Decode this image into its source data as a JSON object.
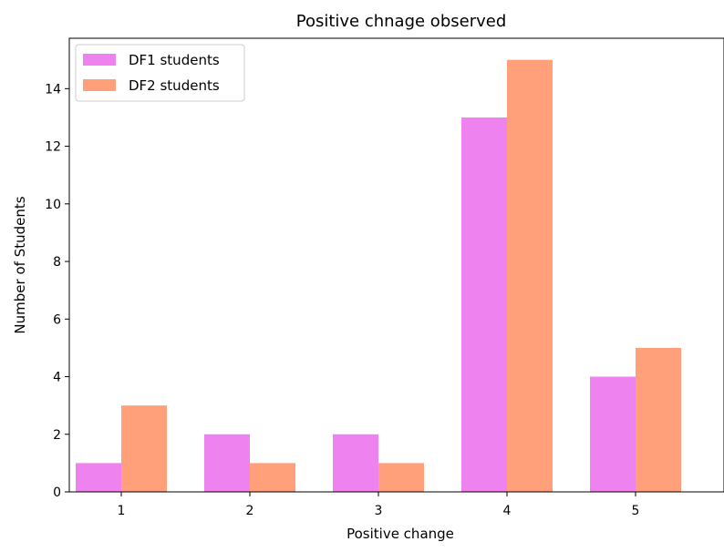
{
  "chart_data": {
    "type": "bar",
    "title": "Positive chnage observed",
    "xlabel": "Positive change",
    "ylabel": "Number of Students",
    "categories": [
      "1",
      "2",
      "3",
      "4",
      "5"
    ],
    "series": [
      {
        "name": "DF1 students",
        "values": [
          1,
          2,
          2,
          13,
          4
        ],
        "color": "#ee82ee"
      },
      {
        "name": "DF2 students",
        "values": [
          3,
          1,
          1,
          15,
          5
        ],
        "color": "#ffa07a"
      }
    ],
    "ylim": [
      0,
      15.75
    ],
    "yticks": [
      0,
      2,
      4,
      6,
      8,
      10,
      12,
      14
    ],
    "grid": false,
    "legend_position": "upper-left"
  }
}
